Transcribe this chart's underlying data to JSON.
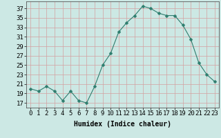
{
  "x": [
    0,
    1,
    2,
    3,
    4,
    5,
    6,
    7,
    8,
    9,
    10,
    11,
    12,
    13,
    14,
    15,
    16,
    17,
    18,
    19,
    20,
    21,
    22,
    23
  ],
  "y": [
    20,
    19.5,
    20.5,
    19.5,
    17.5,
    19.5,
    17.5,
    17,
    20.5,
    25,
    27.5,
    32,
    34,
    35.5,
    37.5,
    37,
    36,
    35.5,
    35.5,
    33.5,
    30.5,
    25.5,
    23,
    21.5
  ],
  "line_color": "#2e7d6e",
  "marker": "D",
  "marker_size": 2.5,
  "bg_color": "#cce8e4",
  "grid_color": "#d4a0a0",
  "xlabel": "Humidex (Indice chaleur)",
  "ylabel_ticks": [
    17,
    19,
    21,
    23,
    25,
    27,
    29,
    31,
    33,
    35,
    37
  ],
  "xlim": [
    -0.5,
    23.5
  ],
  "ylim": [
    16,
    38.5
  ],
  "xticks": [
    0,
    1,
    2,
    3,
    4,
    5,
    6,
    7,
    8,
    9,
    10,
    11,
    12,
    13,
    14,
    15,
    16,
    17,
    18,
    19,
    20,
    21,
    22,
    23
  ],
  "label_fontsize": 7,
  "tick_fontsize": 6.5
}
